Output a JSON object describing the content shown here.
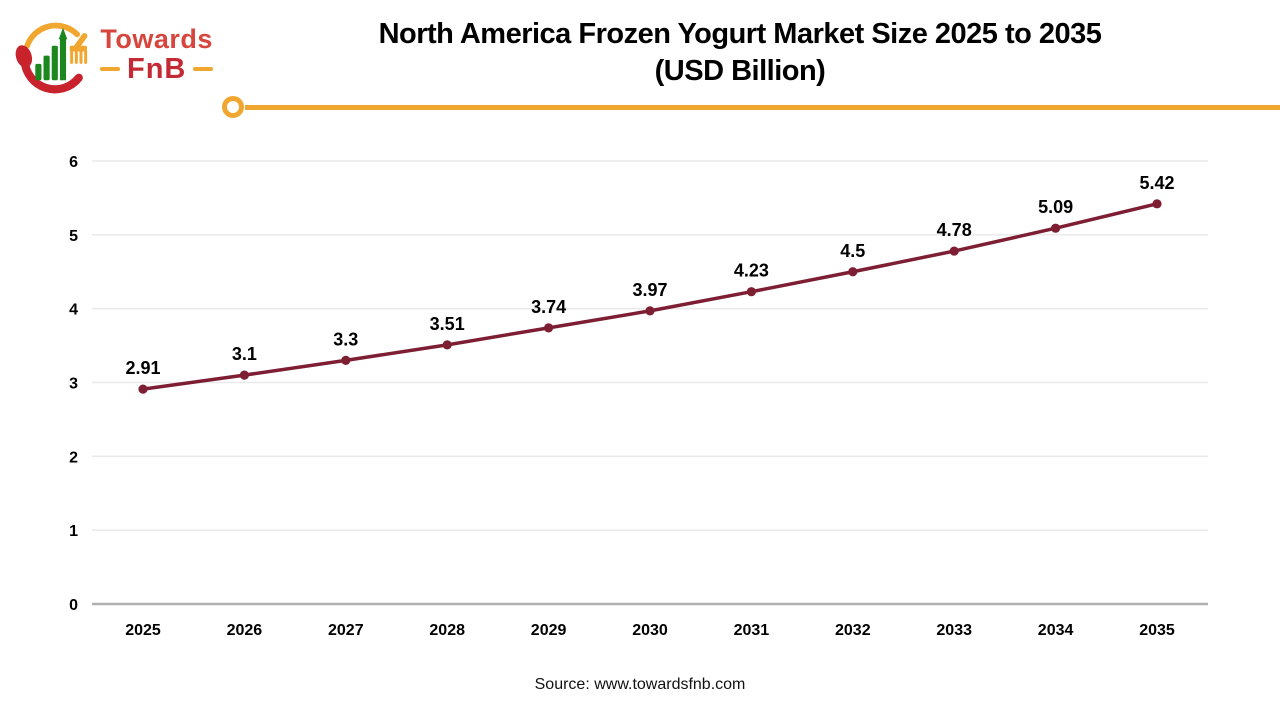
{
  "logo": {
    "icon": "towards-fnb-logo-icon",
    "name_top": "Towards",
    "name_bottom": "FnB",
    "colors": {
      "red": "#c8232c",
      "text_red": "#d6463c",
      "brand_red": "#c42a35",
      "green": "#1c861f",
      "yellow": "#f0a62f"
    }
  },
  "header": {
    "title_line1": "North America Frozen Yogurt Market Size 2025 to 2035",
    "title_line2": "(USD Billion)",
    "accent_color": "#f0a62f"
  },
  "footer": {
    "source": "Source: www.towardsfnb.com"
  },
  "chart_data": {
    "type": "line",
    "title": "North America Frozen Yogurt Market Size 2025 to 2035 (USD Billion)",
    "xlabel": "",
    "ylabel": "",
    "categories": [
      "2025",
      "2026",
      "2027",
      "2028",
      "2029",
      "2030",
      "2031",
      "2032",
      "2033",
      "2034",
      "2035"
    ],
    "series": [
      {
        "name": "Market Size (USD Billion)",
        "values": [
          2.91,
          3.1,
          3.3,
          3.51,
          3.74,
          3.97,
          4.23,
          4.5,
          4.78,
          5.09,
          5.42
        ]
      }
    ],
    "point_labels": [
      "2.91",
      "3.1",
      "3.3",
      "3.51",
      "3.74",
      "3.97",
      "4.23",
      "4.5",
      "4.78",
      "5.09",
      "5.42"
    ],
    "ylim": [
      0,
      6
    ],
    "yticks": [
      0,
      1,
      2,
      3,
      4,
      5,
      6
    ],
    "grid": "horizontal",
    "legend": "none",
    "line_color": "#7e1e33",
    "marker_color": "#7e1e33",
    "grid_color": "#e9e9e9",
    "axis_line_color": "#b0b0b0",
    "tick_label_color": "#000000",
    "data_label_color": "#000000"
  }
}
